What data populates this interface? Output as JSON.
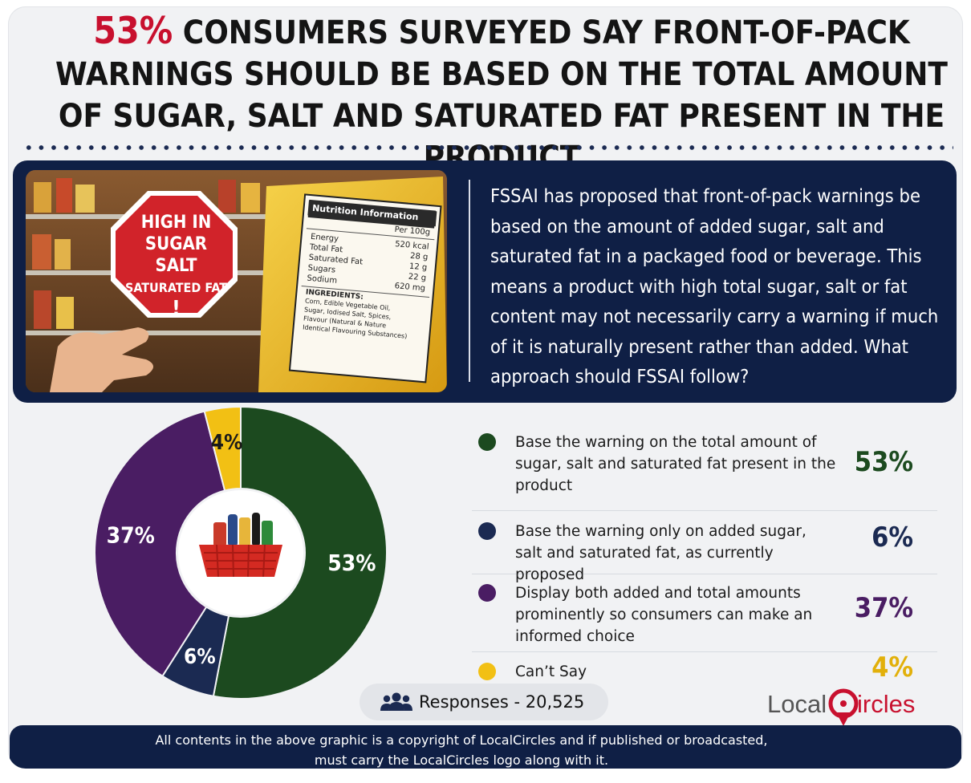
{
  "headline": {
    "highlight": "53%",
    "text": "Consumers surveyed say front-of-pack warnings should be based on the total amount of sugar, salt and saturated fat present in the product"
  },
  "question": "FSSAI has proposed that front-of-pack warnings be based on the amount of added sugar, salt and saturated fat in a packaged food or beverage. This means a product with high total sugar, salt or fat content may not necessarily carry a warning if much of it is naturally present rather than added. What approach should FSSAI follow?",
  "photo": {
    "sign": [
      "HIGH IN",
      "SUGAR",
      "SALT",
      "SATURATED FAT",
      "!"
    ],
    "label_title": "Nutrition Information",
    "per": "Per 100g",
    "rows": [
      {
        "name": "Energy",
        "value": "520 kcal"
      },
      {
        "name": "Total Fat",
        "value": "28 g"
      },
      {
        "name": "Saturated Fat",
        "value": "12 g"
      },
      {
        "name": "Sugars",
        "value": "22 g"
      },
      {
        "name": "Sodium",
        "value": "620 mg"
      }
    ],
    "ingredients_title": "INGREDIENTS:",
    "ingredients": [
      "Corn, Edible Vegetable Oil,",
      "Sugar, Iodised Salt, Spices,",
      "Flavour (Natural & Nature",
      "Identical Flavouring Substances)"
    ]
  },
  "colors": {
    "green": "#1c4a1f",
    "navy": "#1b2a52",
    "purple": "#4a1d63",
    "yellow": "#f2c014",
    "red": "#c8102e",
    "dark_bg": "#0f1f45"
  },
  "chart_data": {
    "type": "pie",
    "donut": true,
    "series": [
      {
        "name": "Base the warning on the total amount of sugar, salt and saturated fat present in the product",
        "value": 53,
        "label": "53%",
        "color": "#1c4a1f"
      },
      {
        "name": "Base the warning only on added sugar, salt and saturated fat, as currently proposed",
        "value": 6,
        "label": "6%",
        "color": "#1b2a52"
      },
      {
        "name": "Display both added and total amounts prominently so consumers can make an informed choice",
        "value": 37,
        "label": "37%",
        "color": "#4a1d63"
      },
      {
        "name": "Can’t Say",
        "value": 4,
        "label": "4%",
        "color": "#f2c014"
      }
    ],
    "legend_position": "right"
  },
  "legend": [
    {
      "text": "Base the warning on the total amount of sugar, salt and saturated fat present in the product",
      "value": "53%",
      "color": "#1c4a1f",
      "value_color": "#1c4a1f"
    },
    {
      "text": "Base the warning only on added sugar, salt and saturated fat, as currently proposed",
      "value": "6%",
      "color": "#1b2a52",
      "value_color": "#1b2a52"
    },
    {
      "text": "Display both added and total amounts prominently so consumers can make an informed choice",
      "value": "37%",
      "color": "#4a1d63",
      "value_color": "#4a1d63"
    },
    {
      "text": "Can’t Say",
      "value": "4%",
      "color": "#f2c014",
      "value_color": "#e2b00a"
    }
  ],
  "responses": "Responses - 20,525",
  "logo": "LocalCircles",
  "footer": [
    "All contents in the above graphic is a copyright of LocalCircles and if published or broadcasted,",
    "must carry the LocalCircles logo along with it."
  ]
}
